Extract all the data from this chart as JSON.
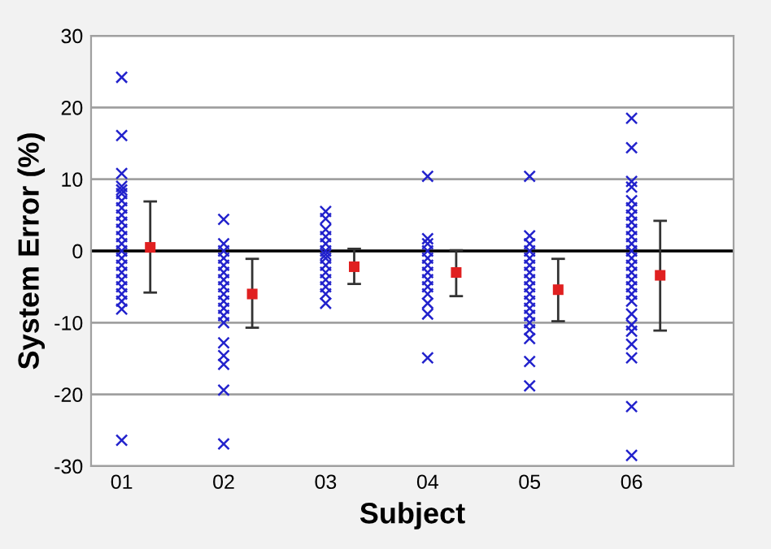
{
  "chart_data": {
    "type": "scatter",
    "xlabel": "Subject",
    "ylabel": "System Error (%)",
    "xlim": [
      0.7,
      7
    ],
    "xticks": [
      {
        "value": 1,
        "label": "01"
      },
      {
        "value": 2,
        "label": "02"
      },
      {
        "value": 3,
        "label": "03"
      },
      {
        "value": 4,
        "label": "04"
      },
      {
        "value": 5,
        "label": "05"
      },
      {
        "value": 6,
        "label": "06"
      }
    ],
    "ylim": [
      -30,
      30
    ],
    "yticks": [
      -30,
      -20,
      -10,
      0,
      10,
      20,
      30
    ],
    "grid": "y",
    "legend": false,
    "ref_lines": [
      {
        "axis": "y",
        "value": 0,
        "color": "#000000"
      }
    ],
    "series": [
      {
        "marker": "cross",
        "color": "#2222cc",
        "x": [
          1,
          1,
          1,
          1,
          1,
          1,
          1,
          1,
          1,
          1,
          1,
          1,
          1,
          1,
          1,
          1,
          1,
          1,
          1,
          1,
          1,
          1,
          1
        ],
        "values": [
          24.2,
          16.1,
          10.8,
          9,
          8.5,
          8,
          7,
          6,
          5,
          4,
          3,
          2,
          1,
          0,
          -1,
          -2,
          -3,
          -4,
          -5,
          -6,
          -7,
          -8.1,
          -26.4
        ]
      },
      {
        "marker": "cross",
        "color": "#2222cc",
        "x": [
          2,
          2,
          2,
          2,
          2,
          2,
          2,
          2,
          2,
          2,
          2,
          2,
          2,
          2,
          2,
          2,
          2,
          2
        ],
        "values": [
          4.4,
          1,
          0,
          -1,
          -2,
          -3,
          -4,
          -5,
          -6,
          -7,
          -8,
          -9,
          -10,
          -12.8,
          -14.6,
          -15.8,
          -19.4,
          -26.9
        ]
      },
      {
        "marker": "cross",
        "color": "#2222cc",
        "x": [
          3,
          3,
          3,
          3,
          3,
          3,
          3,
          3,
          3,
          3,
          3,
          3,
          3,
          3
        ],
        "values": [
          5.5,
          4.5,
          3,
          2,
          1,
          0,
          -0.5,
          -1,
          -2,
          -3,
          -4,
          -5,
          -6,
          -7.3
        ]
      },
      {
        "marker": "cross",
        "color": "#2222cc",
        "x": [
          4,
          4,
          4,
          4,
          4,
          4,
          4,
          4,
          4,
          4,
          4,
          4,
          4
        ],
        "values": [
          10.4,
          1.7,
          1,
          0,
          -1,
          -2,
          -3,
          -4,
          -5,
          -6,
          -7.3,
          -8.8,
          -14.9
        ]
      },
      {
        "marker": "cross",
        "color": "#2222cc",
        "x": [
          5,
          5,
          5,
          5,
          5,
          5,
          5,
          5,
          5,
          5,
          5,
          5,
          5,
          5,
          5,
          5,
          5,
          5
        ],
        "values": [
          10.4,
          2.1,
          1,
          0,
          -1,
          -2,
          -3,
          -4,
          -5,
          -6,
          -7,
          -8,
          -9,
          -10,
          -11,
          -12.2,
          -15.4,
          -18.8
        ]
      },
      {
        "marker": "cross",
        "color": "#2222cc",
        "x": [
          6,
          6,
          6,
          6,
          6,
          6,
          6,
          6,
          6,
          6,
          6,
          6,
          6,
          6,
          6,
          6,
          6,
          6,
          6,
          6,
          6,
          6,
          6,
          6,
          6,
          6
        ],
        "values": [
          18.5,
          14.4,
          9.7,
          8.9,
          7,
          6,
          5,
          4,
          3,
          2,
          1,
          0,
          -1,
          -2,
          -3,
          -4,
          -5,
          -6,
          -7,
          -8.8,
          -10.3,
          -11.2,
          -13,
          -14.9,
          -21.7,
          -28.5
        ]
      },
      {
        "marker": "square",
        "color": "#e02020",
        "x": [
          1.28,
          2.28,
          3.28,
          4.28,
          5.28,
          6.28
        ],
        "values": [
          0.5,
          -6.0,
          -2.2,
          -3.0,
          -5.4,
          -3.4
        ],
        "errors": [
          [
            -5.8,
            6.9
          ],
          [
            -10.7,
            -1.1
          ],
          [
            -4.6,
            0.3
          ],
          [
            -6.3,
            0.1
          ],
          [
            -9.8,
            -1.1
          ],
          [
            -11.1,
            4.2
          ]
        ]
      }
    ]
  }
}
